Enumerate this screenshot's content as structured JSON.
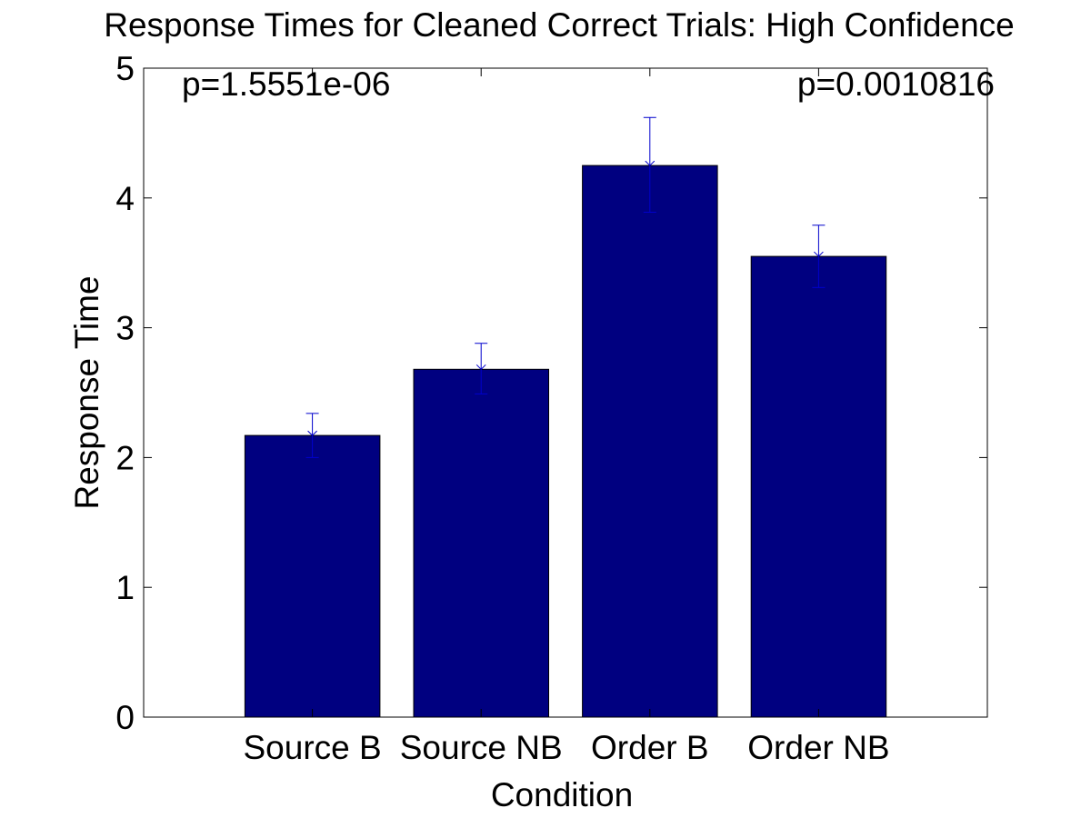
{
  "chart_data": {
    "type": "bar",
    "title": "Response Times for Cleaned Correct Trials: High Confidence",
    "xlabel": "Condition",
    "ylabel": "Response Time",
    "categories": [
      "Source B",
      "Source NB",
      "Order B",
      "Order NB"
    ],
    "values": [
      2.17,
      2.68,
      4.25,
      3.55
    ],
    "error_lower": [
      2.0,
      2.49,
      3.89,
      3.31
    ],
    "error_upper": [
      2.34,
      2.88,
      4.62,
      3.79
    ],
    "ylim": [
      0,
      5
    ],
    "yticks": [
      "0",
      "1",
      "2",
      "3",
      "4",
      "5"
    ],
    "grid": false,
    "legend": "none",
    "annotations": [
      {
        "text": "p=1.5551e-06",
        "position": "top-left"
      },
      {
        "text": "p=0.0010816",
        "position": "top-right"
      }
    ],
    "colors": {
      "bar": "#000080",
      "error_bar": "#0000cc",
      "axes": "#000000"
    }
  }
}
